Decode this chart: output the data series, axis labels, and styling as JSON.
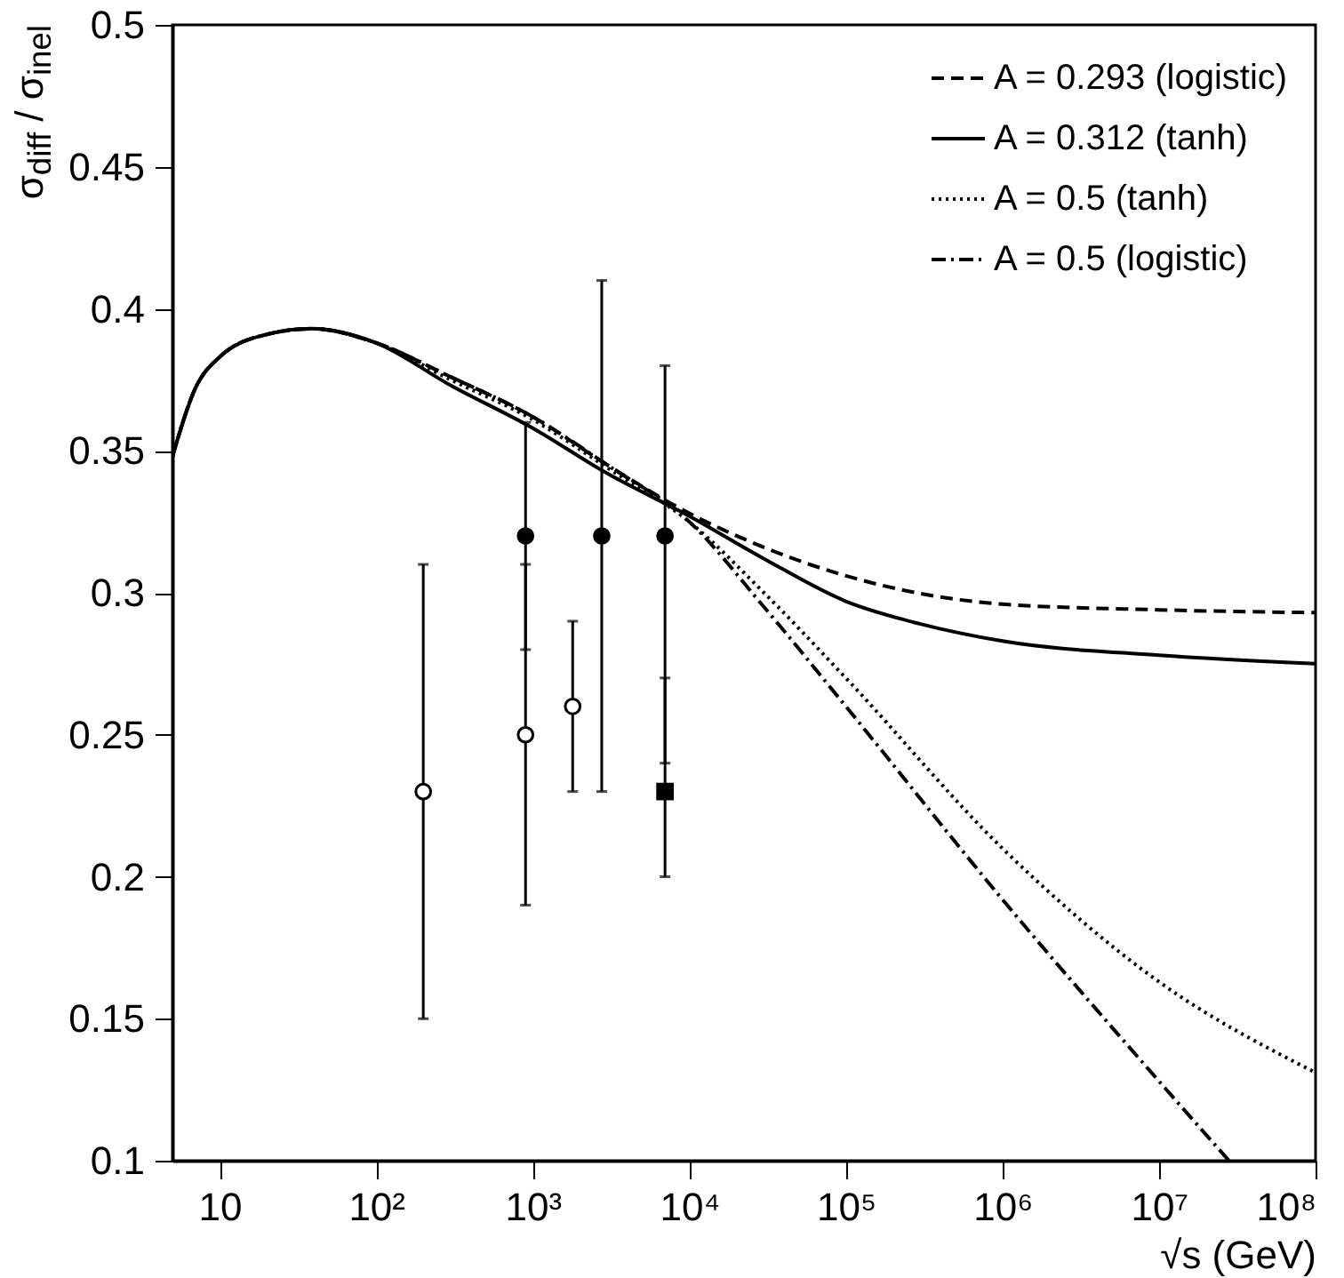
{
  "chart_data": {
    "type": "line",
    "xlabel": "√s (GeV)",
    "ylabel": "σ$_{diff}$ / σ$_{inel}$",
    "log": "x",
    "xlim": [
      5,
      100000000
    ],
    "ylim": [
      0.1,
      0.5
    ],
    "xticks": [
      10,
      {
        "value": 100,
        "label": "10²"
      },
      {
        "value": 1000,
        "label": "10³"
      },
      {
        "value": 10000,
        "label": "10⁴"
      },
      {
        "value": 100000,
        "label": "10⁵"
      },
      {
        "value": 1000000,
        "label": "10⁶"
      },
      {
        "value": 10000000,
        "label": "10⁷"
      },
      {
        "value": 100000000,
        "label": "10⁸"
      }
    ],
    "yticks": [
      0.1,
      0.15,
      0.2,
      0.25,
      0.3,
      0.35,
      0.4,
      0.45,
      0.5
    ],
    "legend": "top right",
    "grid": false,
    "series": [
      {
        "name": "A = 0.293 (logistic)",
        "color": "#000000",
        "line_style": "dashed",
        "x": [
          5,
          7,
          10,
          20,
          39,
          100,
          300,
          1000,
          3000,
          10000,
          30000,
          100000,
          1000000,
          10000000,
          100000000
        ],
        "values": [
          0.348,
          0.372,
          0.383,
          0.391,
          0.393,
          0.388,
          0.376,
          0.362,
          0.345,
          0.328,
          0.316,
          0.306,
          0.296,
          0.294,
          0.293
        ]
      },
      {
        "name": "A = 0.312 (tanh)",
        "color": "#000000",
        "line_style": "solid",
        "x": [
          5,
          7,
          10,
          20,
          39,
          100,
          300,
          1000,
          3000,
          10000,
          30000,
          100000,
          300000,
          1000000,
          10000000,
          100000000
        ],
        "values": [
          0.348,
          0.372,
          0.383,
          0.391,
          0.393,
          0.388,
          0.373,
          0.358,
          0.342,
          0.327,
          0.312,
          0.297,
          0.289,
          0.283,
          0.278,
          0.275
        ]
      },
      {
        "name": "A = 0.5 (tanh)",
        "color": "#000000",
        "line_style": "dotted",
        "x": [
          5,
          7,
          10,
          20,
          39,
          100,
          300,
          1000,
          3000,
          10000,
          30000,
          100000,
          1000000,
          10000000,
          100000000
        ],
        "values": [
          0.348,
          0.372,
          0.383,
          0.391,
          0.393,
          0.388,
          0.375,
          0.361,
          0.344,
          0.325,
          0.3,
          0.27,
          0.21,
          0.163,
          0.131
        ]
      },
      {
        "name": "A = 0.5 (logistic)",
        "color": "#000000",
        "line_style": "dashdot",
        "x": [
          5,
          7,
          10,
          20,
          39,
          100,
          300,
          1000,
          3000,
          10000,
          30000,
          100000,
          1000000,
          10000000,
          28000000
        ],
        "values": [
          0.348,
          0.372,
          0.383,
          0.391,
          0.393,
          0.388,
          0.376,
          0.362,
          0.345,
          0.325,
          0.295,
          0.26,
          0.192,
          0.128,
          0.1
        ]
      },
      {
        "type": "scatter",
        "marker": "circle",
        "color": "#000000",
        "x": [
          900,
          2760,
          7000
        ],
        "values": [
          0.32,
          0.32,
          0.32
        ],
        "errors": [
          [
            0.28,
            0.36
          ],
          [
            0.23,
            0.41
          ],
          [
            0.24,
            0.38
          ]
        ]
      },
      {
        "type": "scatter",
        "marker": "circle",
        "color": "#ffffff",
        "x": [
          200,
          900,
          1800
        ],
        "values": [
          0.23,
          0.25,
          0.26
        ],
        "errors": [
          [
            0.15,
            0.31
          ],
          [
            0.19,
            0.31
          ],
          [
            0.23,
            0.29
          ]
        ]
      },
      {
        "type": "scatter",
        "marker": "square",
        "color": "#000000",
        "x": [
          7000
        ],
        "values": [
          0.23
        ],
        "errors": [
          [
            0.2,
            0.27
          ]
        ]
      }
    ]
  }
}
